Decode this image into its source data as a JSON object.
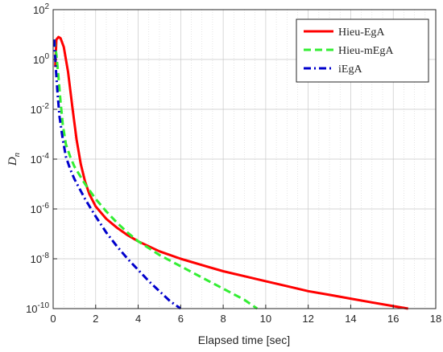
{
  "chart_data": {
    "type": "line",
    "title": "",
    "xlabel": "Elapsed time [sec]",
    "ylabel": "D",
    "ylabel_subscript": "n",
    "xlim": [
      0,
      18
    ],
    "ylim_log10": [
      -10,
      2
    ],
    "yscale": "log",
    "x_ticks": [
      0,
      2,
      4,
      6,
      8,
      10,
      12,
      14,
      16,
      18
    ],
    "y_tick_exponents": [
      2,
      0,
      -2,
      -4,
      -6,
      -8,
      -10
    ],
    "y_tick_base": "10",
    "grid": "on",
    "legend_position": "top-right",
    "series": [
      {
        "name": "Hieu-EgA",
        "color": "#ff0000",
        "linestyle": "solid",
        "points": [
          [
            0.1,
            -0.3
          ],
          [
            0.15,
            0.8
          ],
          [
            0.25,
            0.9
          ],
          [
            0.35,
            0.85
          ],
          [
            0.5,
            0.5
          ],
          [
            0.7,
            -0.5
          ],
          [
            0.9,
            -1.9
          ],
          [
            1.1,
            -3.2
          ],
          [
            1.3,
            -4.2
          ],
          [
            1.5,
            -4.9
          ],
          [
            1.7,
            -5.4
          ],
          [
            2.0,
            -5.9
          ],
          [
            2.5,
            -6.4
          ],
          [
            3.0,
            -6.75
          ],
          [
            3.5,
            -7.05
          ],
          [
            4.0,
            -7.3
          ],
          [
            5.0,
            -7.7
          ],
          [
            6.0,
            -8.0
          ],
          [
            7.0,
            -8.25
          ],
          [
            8.0,
            -8.5
          ],
          [
            9.0,
            -8.7
          ],
          [
            10.0,
            -8.9
          ],
          [
            11.0,
            -9.1
          ],
          [
            12.0,
            -9.3
          ],
          [
            13.0,
            -9.45
          ],
          [
            14.0,
            -9.6
          ],
          [
            15.0,
            -9.75
          ],
          [
            16.0,
            -9.9
          ],
          [
            16.7,
            -10.0
          ]
        ]
      },
      {
        "name": "Hieu-mEgA",
        "color": "#33ee33",
        "linestyle": "dashed",
        "points": [
          [
            0.05,
            0.8
          ],
          [
            0.15,
            0.2
          ],
          [
            0.25,
            -0.7
          ],
          [
            0.35,
            -1.7
          ],
          [
            0.45,
            -2.6
          ],
          [
            0.6,
            -3.4
          ],
          [
            0.8,
            -3.9
          ],
          [
            1.0,
            -4.3
          ],
          [
            1.5,
            -5.0
          ],
          [
            2.0,
            -5.6
          ],
          [
            2.5,
            -6.1
          ],
          [
            3.0,
            -6.55
          ],
          [
            3.5,
            -6.95
          ],
          [
            4.0,
            -7.3
          ],
          [
            5.0,
            -7.85
          ],
          [
            6.0,
            -8.3
          ],
          [
            7.0,
            -8.75
          ],
          [
            8.0,
            -9.2
          ],
          [
            9.0,
            -9.65
          ],
          [
            9.6,
            -10.0
          ]
        ]
      },
      {
        "name": "iEgA",
        "color": "#0000cc",
        "linestyle": "dashdot",
        "points": [
          [
            0.05,
            0.8
          ],
          [
            0.12,
            -0.3
          ],
          [
            0.2,
            -1.3
          ],
          [
            0.3,
            -2.3
          ],
          [
            0.45,
            -3.2
          ],
          [
            0.6,
            -3.9
          ],
          [
            0.8,
            -4.4
          ],
          [
            1.0,
            -4.8
          ],
          [
            1.5,
            -5.6
          ],
          [
            2.0,
            -6.3
          ],
          [
            2.5,
            -6.95
          ],
          [
            3.0,
            -7.5
          ],
          [
            3.5,
            -8.0
          ],
          [
            4.0,
            -8.45
          ],
          [
            4.5,
            -8.9
          ],
          [
            5.0,
            -9.3
          ],
          [
            5.5,
            -9.7
          ],
          [
            6.0,
            -10.0
          ]
        ]
      }
    ]
  }
}
